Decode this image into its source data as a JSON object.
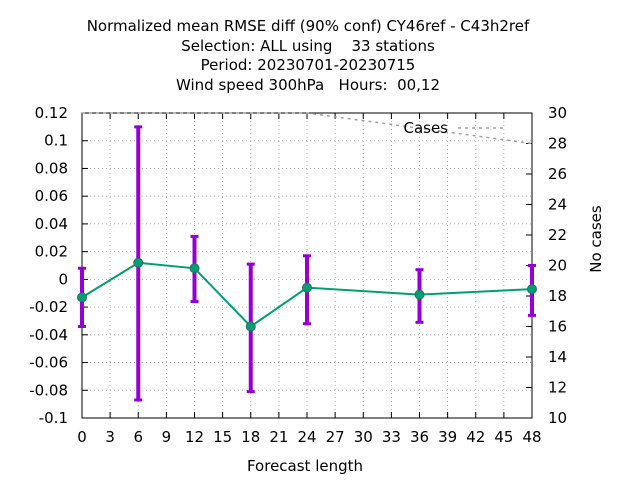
{
  "chart_data": {
    "type": "line",
    "title": [
      "Normalized mean RMSE diff (90% conf) CY46ref - C43h2ref",
      "Selection: ALL using    33 stations",
      "Period: 20230701-20230715",
      "Wind speed 300hPa   Hours:  00,12"
    ],
    "xlabel": "Forecast length",
    "ylabel": "",
    "y2label": "No cases",
    "xlim": [
      0,
      48
    ],
    "ylim": [
      -0.1,
      0.12
    ],
    "y2lim": [
      10,
      30
    ],
    "x_ticks": [
      "0",
      "3",
      "6",
      "9",
      "12",
      "15",
      "18",
      "21",
      "24",
      "27",
      "30",
      "33",
      "36",
      "39",
      "42",
      "45",
      "48"
    ],
    "y_ticks": [
      "-0.1",
      "-0.08",
      "-0.06",
      "-0.04",
      "-0.02",
      "0",
      "0.02",
      "0.04",
      "0.06",
      "0.08",
      "0.1",
      "0.12"
    ],
    "y2_ticks": [
      "10",
      "12",
      "14",
      "16",
      "18",
      "20",
      "22",
      "24",
      "26",
      "28",
      "30"
    ],
    "grid": true,
    "legend": "top-right",
    "series": [
      {
        "name": "",
        "kind": "mean-with-errorbars",
        "x": [
          0,
          6,
          12,
          18,
          24,
          36,
          48
        ],
        "y": [
          -0.013,
          0.012,
          0.008,
          -0.034,
          -0.006,
          -0.011,
          -0.007
        ],
        "err_low": [
          -0.034,
          -0.087,
          -0.016,
          -0.081,
          -0.032,
          -0.031,
          -0.026
        ],
        "err_high": [
          0.008,
          0.11,
          0.031,
          0.011,
          0.017,
          0.007,
          0.01
        ],
        "line_color": "#009e73",
        "bar_color": "#9400d3"
      },
      {
        "name": "Cases",
        "axis": "y2",
        "x": [
          0,
          6,
          12,
          18,
          24,
          36,
          48
        ],
        "y": [
          30,
          30,
          30,
          30,
          30,
          29,
          28
        ],
        "color": "#a0a0a0",
        "dashed": true
      }
    ]
  }
}
